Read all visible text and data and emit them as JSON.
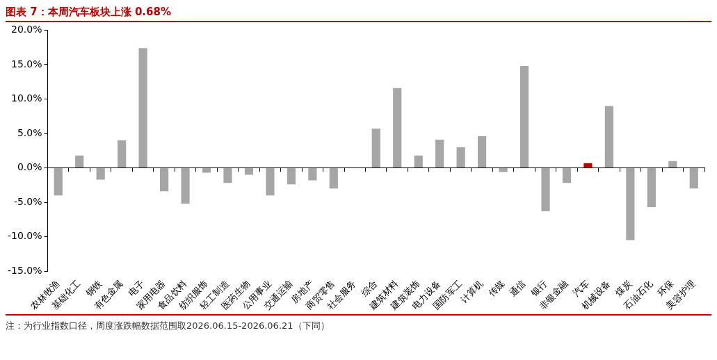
{
  "chart_data": {
    "type": "bar",
    "title": "图表 7：本周汽车板块上涨 0.68%",
    "categories": [
      "农林牧渔",
      "基础化工",
      "钢铁",
      "有色金属",
      "电子",
      "家用电器",
      "食品饮料",
      "纺织服饰",
      "轻工制造",
      "医药生物",
      "公用事业",
      "交通运输",
      "房地产",
      "商贸零售",
      "社会服务",
      "综合",
      "建筑材料",
      "建筑装饰",
      "电力设备",
      "国防军工",
      "计算机",
      "传媒",
      "通信",
      "银行",
      "非银金融",
      "汽车",
      "机械设备",
      "煤炭",
      "石油石化",
      "环保",
      "美容护理"
    ],
    "values": [
      -4.0,
      1.8,
      -1.7,
      4.0,
      17.4,
      -3.4,
      -5.2,
      -0.7,
      -2.2,
      -1.0,
      -4.0,
      -2.4,
      -1.8,
      -3.0,
      0,
      5.7,
      11.6,
      1.8,
      4.1,
      3.0,
      4.6,
      -0.6,
      14.8,
      -6.3,
      -2.2,
      0.68,
      9.0,
      -10.5,
      -5.7,
      1.0,
      -3.0
    ],
    "colors": [
      "#a6a6a6",
      "#a6a6a6",
      "#a6a6a6",
      "#a6a6a6",
      "#a6a6a6",
      "#a6a6a6",
      "#a6a6a6",
      "#a6a6a6",
      "#a6a6a6",
      "#a6a6a6",
      "#a6a6a6",
      "#a6a6a6",
      "#a6a6a6",
      "#a6a6a6",
      "#a6a6a6",
      "#a6a6a6",
      "#a6a6a6",
      "#a6a6a6",
      "#a6a6a6",
      "#a6a6a6",
      "#a6a6a6",
      "#a6a6a6",
      "#a6a6a6",
      "#a6a6a6",
      "#a6a6a6",
      "#c00000",
      "#a6a6a6",
      "#a6a6a6",
      "#a6a6a6",
      "#a6a6a6",
      "#a6a6a6"
    ],
    "ylim": [
      -15,
      20
    ],
    "yticks": [
      {
        "value": -15,
        "label": "-15.0%"
      },
      {
        "value": -10,
        "label": "-10.0%"
      },
      {
        "value": -5,
        "label": "-5.0%"
      },
      {
        "value": 0,
        "label": "0.0%"
      },
      {
        "value": 5,
        "label": "5.0%"
      },
      {
        "value": 10,
        "label": "10.0%"
      },
      {
        "value": 15,
        "label": "15.0%"
      },
      {
        "value": 20,
        "label": "20.0%"
      }
    ],
    "legend": false,
    "annotations": [
      "注：为行业指数口径，周度涨跌幅数据范围取2026.06.15-2026.06.21（下同）"
    ]
  }
}
